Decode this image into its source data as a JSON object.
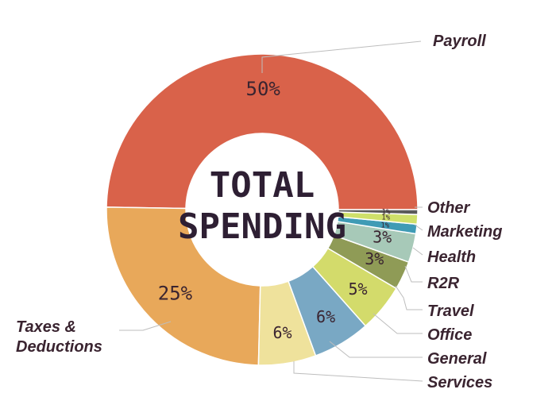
{
  "chart_data": {
    "type": "pie",
    "title": "TOTAL SPENDING",
    "slices": [
      {
        "name": "Payroll",
        "value": 50,
        "label": "50%",
        "color": "#d9624a"
      },
      {
        "name": "Taxes & Deductions",
        "value": 25,
        "label": "25%",
        "color": "#e8a85a"
      },
      {
        "name": "General Services",
        "value": 6,
        "label": "6%",
        "color": "#efe29c"
      },
      {
        "name": "Office",
        "value": 6,
        "label": "6%",
        "color": "#79a8c4"
      },
      {
        "name": "Travel",
        "value": 5,
        "label": "5%",
        "color": "#d3db6b"
      },
      {
        "name": "R2R",
        "value": 3,
        "label": "3%",
        "color": "#8f9b56"
      },
      {
        "name": "Health",
        "value": 3,
        "label": "3%",
        "color": "#a7c9b8"
      },
      {
        "name": "Marketing",
        "value": 1,
        "label": "1%",
        "color": "#3f9bb5"
      },
      {
        "name": "Other",
        "value": 1,
        "label": "1%",
        "color": "#cfe06a"
      },
      {
        "name": "",
        "value": 0.5,
        "label": "1%",
        "color": "#5a5a5a"
      }
    ]
  },
  "labels": {
    "center_line1": "TOTAL",
    "center_line2": "SPENDING",
    "payroll": "Payroll",
    "taxes_line1": "Taxes &",
    "taxes_line2": "Deductions",
    "other": "Other",
    "marketing": "Marketing",
    "health": "Health",
    "r2r": "R2R",
    "travel": "Travel",
    "office": "Office",
    "general_line1": "General",
    "general_line2": "Services"
  }
}
